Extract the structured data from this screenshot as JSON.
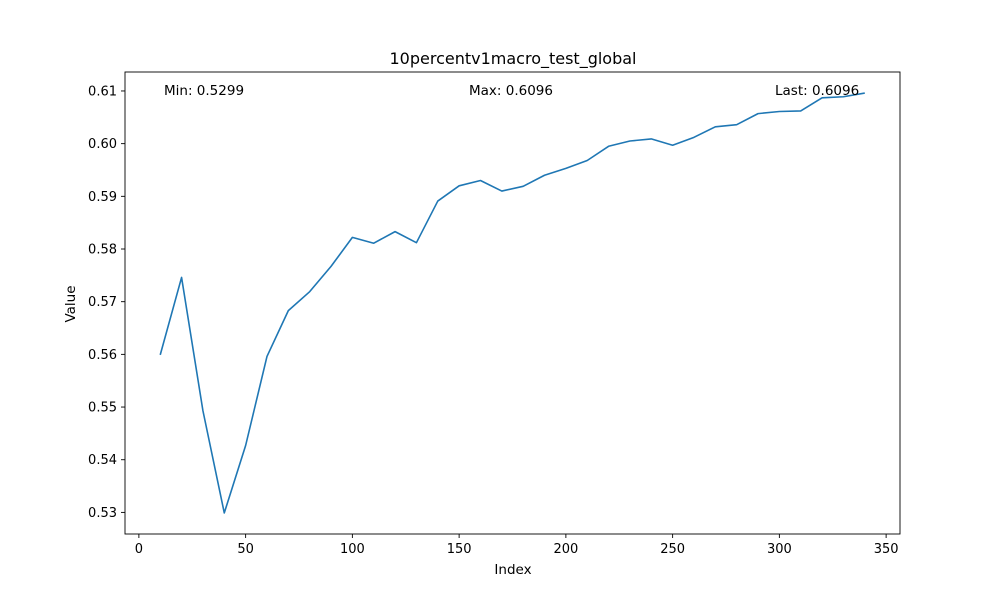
{
  "chart_data": {
    "type": "line",
    "title": "10percentv1macro_test_global",
    "xlabel": "Index",
    "ylabel": "Value",
    "xlim": [
      -6.5,
      356.5
    ],
    "ylim": [
      0.5259,
      0.6136
    ],
    "xticks": [
      0,
      50,
      100,
      150,
      200,
      250,
      300,
      350
    ],
    "yticks": [
      0.53,
      0.54,
      0.55,
      0.56,
      0.57,
      0.58,
      0.59,
      0.6,
      0.61
    ],
    "ytick_labels": [
      "0.53",
      "0.54",
      "0.55",
      "0.56",
      "0.57",
      "0.58",
      "0.59",
      "0.60",
      "0.61"
    ],
    "grid": false,
    "line_color": "#1f77b4",
    "series": [
      {
        "x": [
          10,
          20,
          30,
          40,
          50,
          60,
          70,
          80,
          90,
          100,
          110,
          120,
          130,
          140,
          150,
          160,
          170,
          180,
          190,
          200,
          210,
          220,
          230,
          240,
          250,
          260,
          270,
          280,
          290,
          300,
          310,
          320,
          330,
          340
        ],
        "values": [
          0.5599,
          0.5746,
          0.5493,
          0.5299,
          0.5427,
          0.5596,
          0.5683,
          0.5719,
          0.5767,
          0.5822,
          0.5811,
          0.5833,
          0.5812,
          0.5891,
          0.592,
          0.593,
          0.591,
          0.5919,
          0.594,
          0.5953,
          0.5968,
          0.5995,
          0.6005,
          0.6009,
          0.5997,
          0.6012,
          0.6032,
          0.6036,
          0.6057,
          0.6061,
          0.6062,
          0.6087,
          0.6089,
          0.6096
        ]
      }
    ],
    "annotations": {
      "min": "Min: 0.5299",
      "max": "Max: 0.6096",
      "last": "Last: 0.6096"
    }
  }
}
